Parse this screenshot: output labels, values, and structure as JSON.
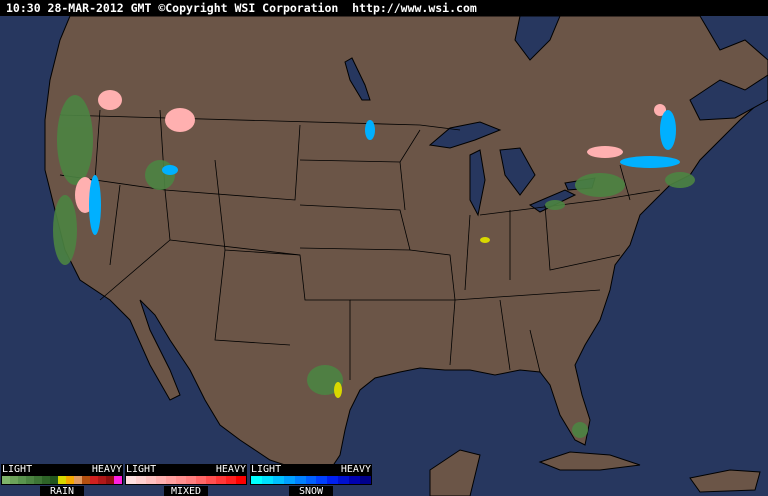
{
  "header": {
    "text": "10:30 28-MAR-2012 GMT ©Copyright WSI Corporation  http://www.wsi.com"
  },
  "colors": {
    "ocean": "#27375f",
    "land": "#6b5547",
    "borders": "#000000"
  },
  "legend": [
    {
      "name": "RAIN",
      "light": "LIGHT",
      "heavy": "HEAVY",
      "colors": [
        "#7fb46a",
        "#6ca35a",
        "#5a944e",
        "#4c8442",
        "#3e7536",
        "#2e6428",
        "#22551e",
        "#d8d800",
        "#f4a800",
        "#e09a60",
        "#b45010",
        "#d02020",
        "#b01818",
        "#901010",
        "#ff20e0"
      ]
    },
    {
      "name": "MIXED",
      "light": "LIGHT",
      "heavy": "HEAVY",
      "colors": [
        "#ffe0e0",
        "#ffd0d0",
        "#ffc0c0",
        "#ffb0b0",
        "#ffa0a0",
        "#ff9090",
        "#ff8080",
        "#ff6868",
        "#ff5050",
        "#ff3838",
        "#ff2020",
        "#ff0000"
      ]
    },
    {
      "name": "SNOW",
      "light": "LIGHT",
      "heavy": "HEAVY",
      "colors": [
        "#00ffff",
        "#00e0ff",
        "#00c0ff",
        "#00a0ff",
        "#0080ff",
        "#0060ff",
        "#0040ff",
        "#0020f0",
        "#0010d0",
        "#0000b0",
        "#00008c"
      ]
    }
  ]
}
